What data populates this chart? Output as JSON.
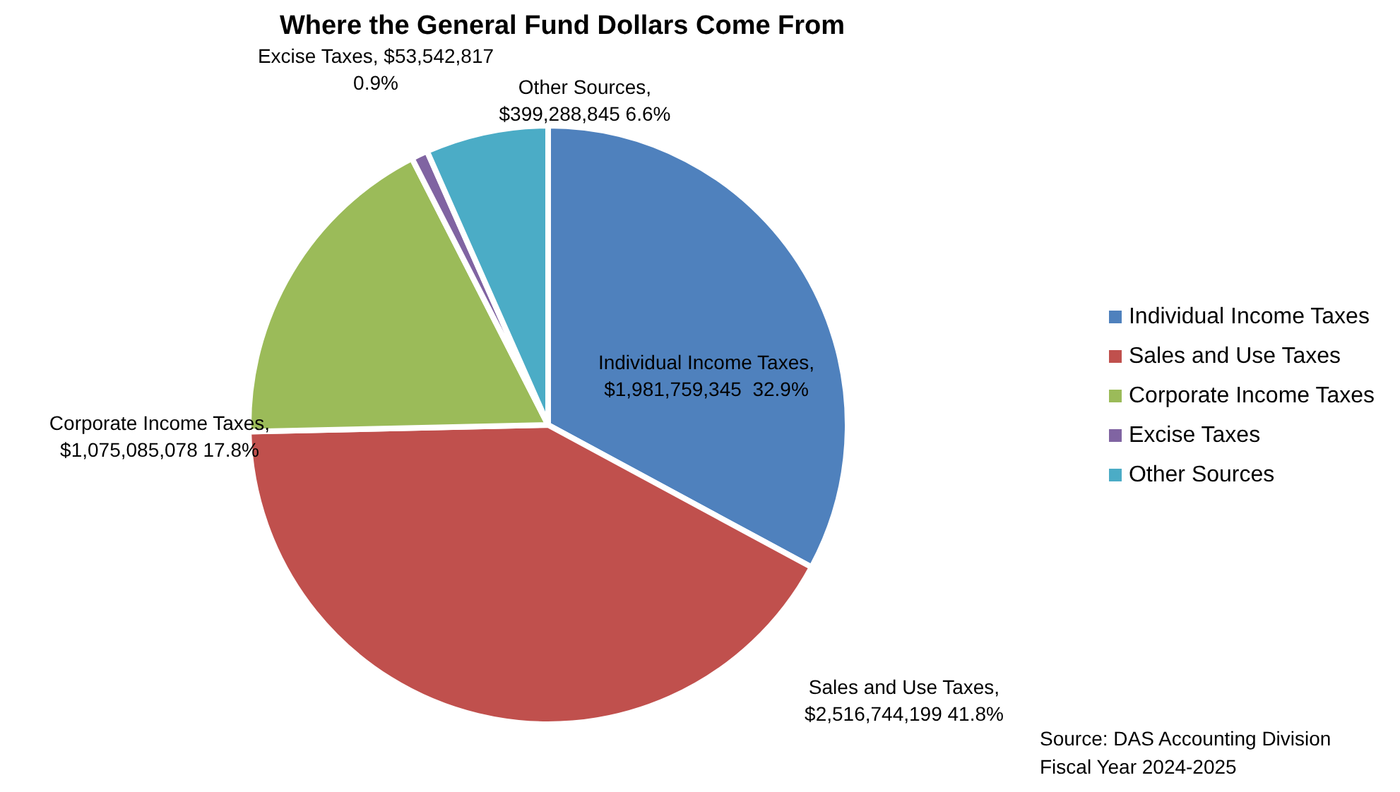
{
  "chart_data": {
    "type": "pie",
    "title": "Where the General Fund Dollars Come From",
    "categories": [
      "Individual Income Taxes",
      "Sales and Use Taxes",
      "Corporate Income Taxes",
      "Excise Taxes",
      "Other Sources"
    ],
    "values": [
      1981759345,
      2516744199,
      1075085078,
      53542817,
      399288845
    ],
    "value_labels": [
      "Individual Income Taxes,\n$1,981,759,345  32.9%",
      "Sales and Use Taxes,\n$2,516,744,199 41.8%",
      "Corporate Income Taxes,\n$1,075,085,078 17.8%",
      "Excise Taxes, $53,542,817\n0.9%",
      "Other Sources,\n$399,288,845 6.6%"
    ],
    "colors": [
      "#4f81bd",
      "#c0504d",
      "#9bbb59",
      "#8064a2",
      "#4bacc6"
    ],
    "legend": "right",
    "annotations": [
      "Source: DAS Accounting Division",
      "Fiscal Year 2024-2025"
    ]
  }
}
